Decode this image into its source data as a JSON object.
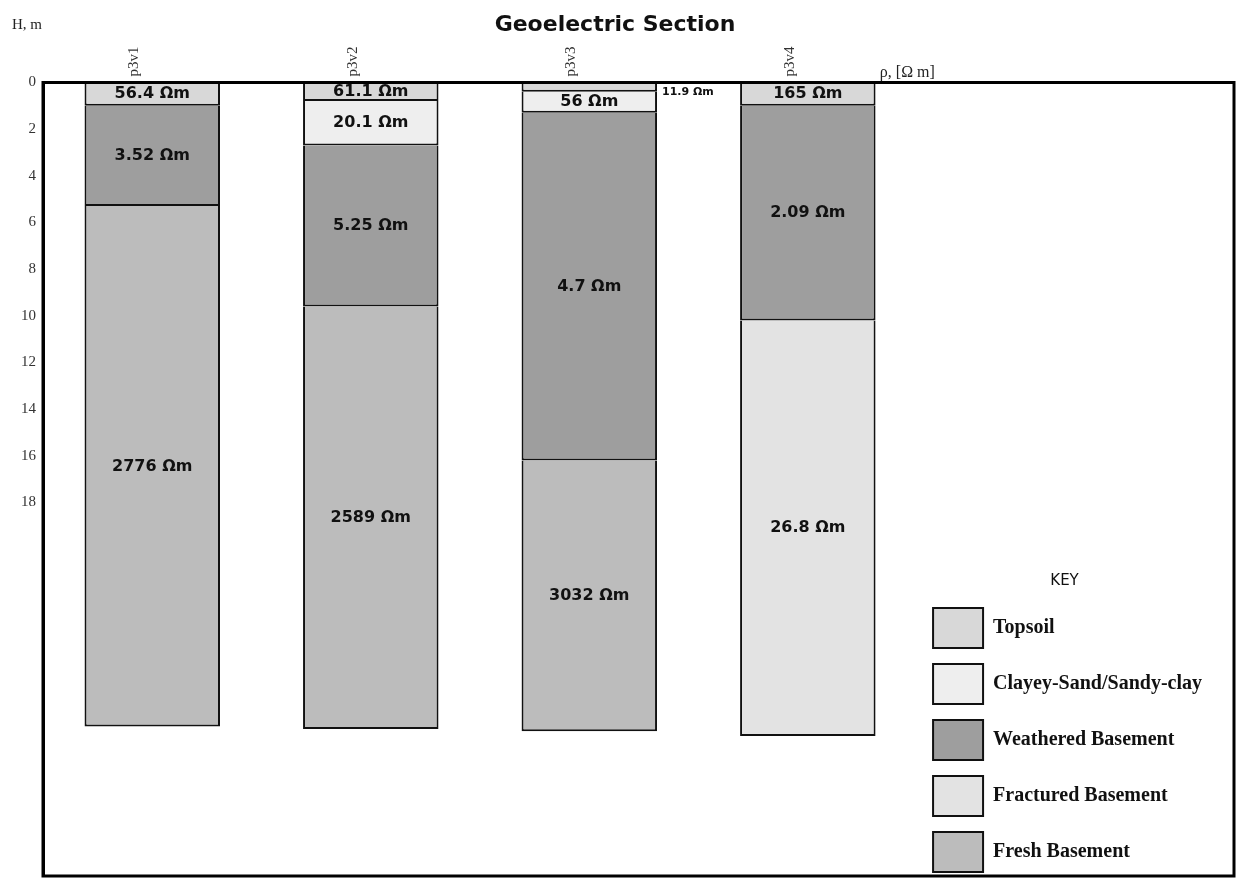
{
  "chart_data": {
    "type": "bar",
    "title": "Geoelectric Section",
    "ylabel": "H, m",
    "categories": [
      "p3v1",
      "p3v2",
      "p3v3",
      "p3v4"
    ],
    "stacked": true,
    "ylim": [
      34,
      0
    ],
    "yticks": [
      0,
      2,
      4,
      6,
      8,
      10,
      12,
      14,
      16,
      18
    ],
    "legend": "bottom right",
    "legend_title": "KEY",
    "series": [
      {
        "name": "Topsoil",
        "color": "#d8d8d8",
        "values": [
          1.0,
          0.8,
          0.4,
          1.0
        ]
      },
      {
        "name": "Clayey-Sand/Sandy-clay",
        "color": "#eeeeee",
        "values": [
          null,
          1.9,
          0.9,
          null
        ]
      },
      {
        "name": "Weathered Basement",
        "color": "#9e9e9e",
        "values": [
          4.3,
          6.9,
          14.9,
          9.2
        ]
      },
      {
        "name": "Fractured Basement",
        "color": "#e3e3e3",
        "values": [
          null,
          null,
          null,
          17.8
        ]
      },
      {
        "name": "Fresh Basement",
        "color": "#bcbcbc",
        "values": [
          22.3,
          18.1,
          11.6,
          null
        ]
      }
    ],
    "annotations": [
      "56.4 Ωm",
      "3.52 Ωm",
      "2776 Ωm",
      "61.1 Ωm",
      "20.1 Ωm",
      "5.25 Ωm",
      "2589 Ωm",
      "11.9 Ωm",
      "56 Ωm",
      "4.7 Ωm",
      "3032 Ωm",
      "165 Ωm",
      "2.09 Ωm",
      "26.8 Ωm",
      "ρ, [Ω m]"
    ]
  }
}
